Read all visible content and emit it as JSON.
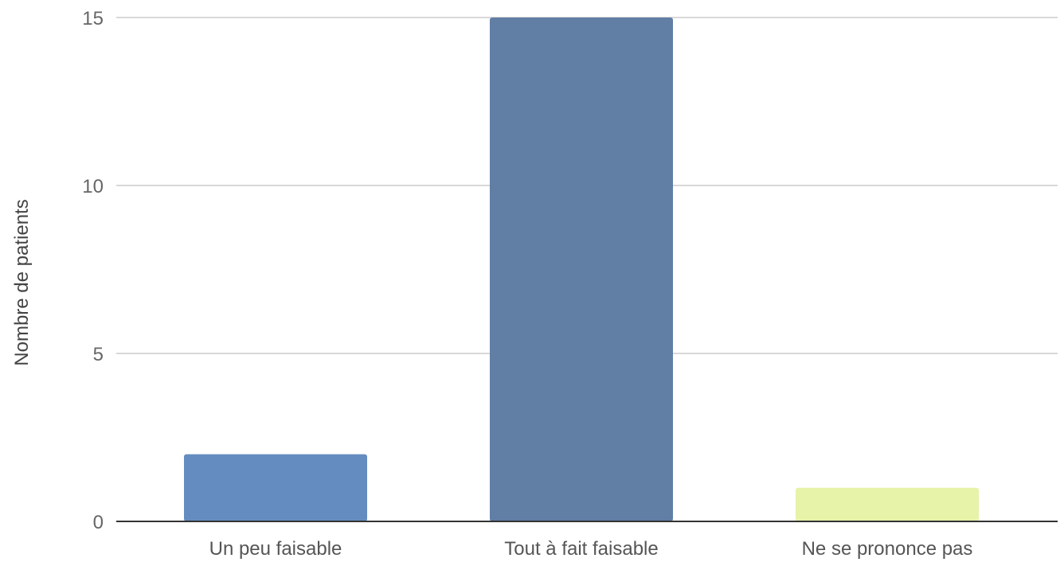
{
  "chart_data": {
    "type": "bar",
    "title": "",
    "xlabel": "",
    "ylabel": "Nombre de patients",
    "categories": [
      "Un peu faisable",
      "Tout à fait faisable",
      "Ne se prononce pas"
    ],
    "values": [
      2,
      15,
      1
    ],
    "bar_colors": [
      "#658cc0",
      "#617ea5",
      "#e6f3a8"
    ],
    "ylim": [
      0,
      15
    ],
    "yticks": [
      0,
      5,
      10,
      15
    ],
    "ytick_labels": [
      "0",
      "5",
      "10",
      "15"
    ],
    "grid": true,
    "legend": "none"
  }
}
